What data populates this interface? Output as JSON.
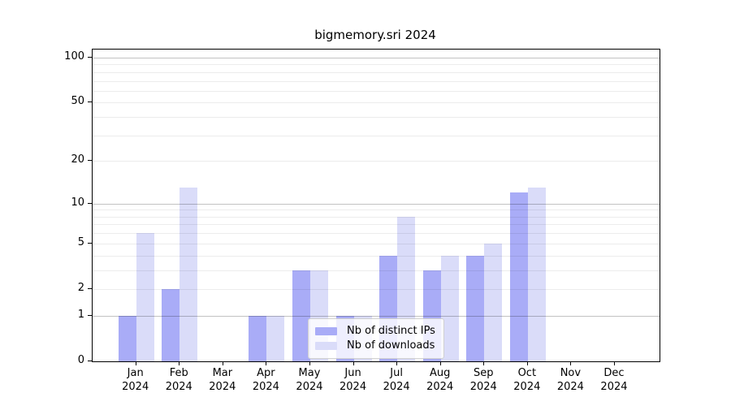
{
  "title": "bigmemory.sri 2024",
  "chart_data": {
    "type": "bar",
    "title": "bigmemory.sri 2024",
    "categories": [
      "Jan",
      "Feb",
      "Mar",
      "Apr",
      "May",
      "Jun",
      "Jul",
      "Aug",
      "Sep",
      "Oct",
      "Nov",
      "Dec"
    ],
    "year_label": "2024",
    "series": [
      {
        "name": "Nb of distinct IPs",
        "color": "#a9acf7",
        "values": [
          1,
          2,
          0,
          1,
          3,
          1,
          4,
          3,
          4,
          12,
          0,
          0
        ]
      },
      {
        "name": "Nb of downloads",
        "color": "#dadcf9",
        "values": [
          6,
          13,
          0,
          1,
          3,
          1,
          8,
          4,
          5,
          13,
          0,
          0
        ]
      }
    ],
    "xlabel": "",
    "ylabel": "",
    "y_ticks": [
      0,
      1,
      2,
      5,
      10,
      20,
      50,
      100
    ],
    "y_major_gridlines": [
      1,
      10,
      100
    ],
    "y_minor_gridlines": [
      2,
      3,
      4,
      5,
      6,
      7,
      8,
      9,
      20,
      30,
      40,
      50,
      60,
      70,
      80,
      90
    ],
    "ylim": [
      0,
      100
    ],
    "y_scale": "log10(value+1)",
    "grid": "on",
    "legend_position": "inside-bottom-center"
  },
  "colors": {
    "axis": "#000000",
    "grid_minor": "#ebebeb",
    "grid_major": "#c6c6c6",
    "legend_border": "#d0d0d0",
    "background": "#ffffff"
  }
}
